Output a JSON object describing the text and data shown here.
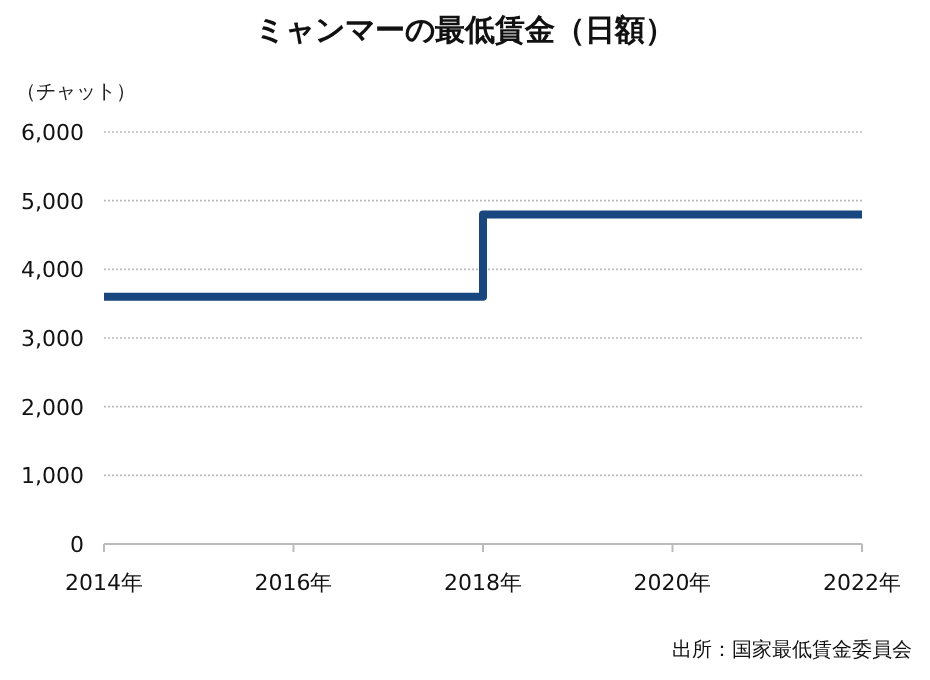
{
  "chart_data": {
    "type": "step",
    "title": "ミャンマーの最低賃金（日額）",
    "ylabel": "（チャット）",
    "x": [
      2014,
      2018,
      2022
    ],
    "series": [
      {
        "color": "#17477e",
        "values": [
          3600,
          4800,
          4800
        ]
      }
    ],
    "xlim": [
      2014,
      2022
    ],
    "xticks": [
      {
        "value": 2014,
        "label": "2014年"
      },
      {
        "value": 2016,
        "label": "2016年"
      },
      {
        "value": 2018,
        "label": "2018年"
      },
      {
        "value": 2020,
        "label": "2020年"
      },
      {
        "value": 2022,
        "label": "2022年"
      }
    ],
    "ylim": [
      0,
      6000
    ],
    "yticks": [
      {
        "value": 0,
        "label": "0"
      },
      {
        "value": 1000,
        "label": "1,000"
      },
      {
        "value": 2000,
        "label": "2,000"
      },
      {
        "value": 3000,
        "label": "3,000"
      },
      {
        "value": 4000,
        "label": "4,000"
      },
      {
        "value": 5000,
        "label": "5,000"
      },
      {
        "value": 6000,
        "label": "6,000"
      }
    ],
    "grid": "y",
    "marker": "none",
    "line_style": "solid",
    "annotations": [
      "出所：国家最低賃金委員会"
    ]
  }
}
